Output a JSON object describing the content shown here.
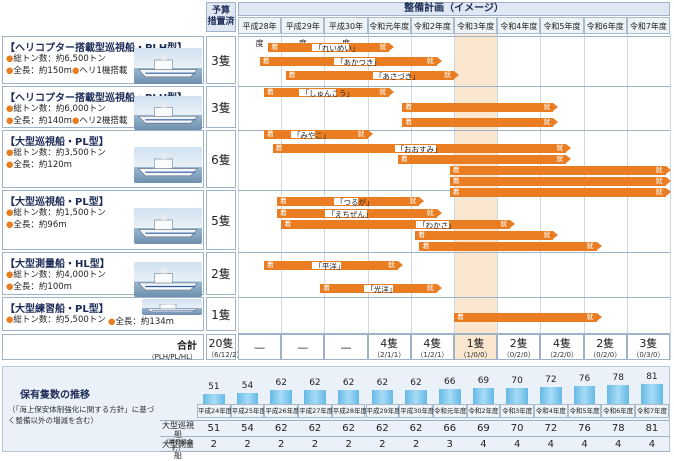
{
  "header": {
    "budget_label": "予算\n措置済",
    "plan_label": "整備計画（イメージ）",
    "years": [
      "平成28年度",
      "平成29年度",
      "平成30年度",
      "令和元年度",
      "令和2年度",
      "令和3年度",
      "令和4年度",
      "令和5年度",
      "令和6年度",
      "令和7年度"
    ]
  },
  "ships": [
    {
      "name": "【ヘリコプター搭載型巡視船・PLH型】",
      "spec1": "総トン数：約6,500トン",
      "spec2": "全長：約150m",
      "spec3": "ヘリ1機搭載",
      "count": "3隻"
    },
    {
      "name": "【ヘリコプター搭載型巡視船・PLH型】",
      "spec1": "総トン数：約6,000トン",
      "spec2": "全長：約140m",
      "spec3": "ヘリ2機搭載",
      "count": "3隻"
    },
    {
      "name": "【大型巡視船・PL型】",
      "spec1": "総トン数：約3,500トン",
      "spec2": "全長：約120m",
      "spec3": "",
      "count": "6隻"
    },
    {
      "name": "【大型巡視船・PL型】",
      "spec1": "総トン数：約1,500トン",
      "spec2": "全長：約96m",
      "spec3": "",
      "count": "5隻"
    },
    {
      "name": "【大型測量船・HL型】",
      "spec1": "総トン数：約4,000トン",
      "spec2": "全長：約100m",
      "spec3": "",
      "count": "2隻"
    },
    {
      "name": "【大型練習船・PL型】",
      "spec1": "総トン数：約5,500トン",
      "spec2": "全長：約134m",
      "spec3": "",
      "count": "1隻"
    }
  ],
  "bars": [
    {
      "start": "着",
      "end": "就",
      "name": "「れいめい」"
    },
    {
      "start": "着",
      "end": "就",
      "name": "「あかつき」"
    },
    {
      "start": "着",
      "end": "就",
      "name": "「あさづき」"
    },
    {
      "start": "着",
      "end": "就",
      "name": "「しゅんこう」"
    },
    {
      "start": "着",
      "end": "就",
      "name": ""
    },
    {
      "start": "着",
      "end": "就",
      "name": ""
    },
    {
      "start": "着",
      "end": "就",
      "name": "「みやこ」"
    },
    {
      "start": "着",
      "end": "就",
      "name": "「おおすみ」"
    },
    {
      "start": "着",
      "end": "就",
      "name": ""
    },
    {
      "start": "着",
      "end": "就",
      "name": ""
    },
    {
      "start": "着",
      "end": "就",
      "name": ""
    },
    {
      "start": "着",
      "end": "就",
      "name": ""
    },
    {
      "start": "着",
      "end": "就",
      "name": "「つるが」"
    },
    {
      "start": "着",
      "end": "就",
      "name": "「えちぜん」"
    },
    {
      "start": "着",
      "end": "就",
      "name": "「わかさ」"
    },
    {
      "start": "着",
      "end": "就",
      "name": ""
    },
    {
      "start": "着",
      "end": "就",
      "name": ""
    },
    {
      "start": "着",
      "end": "就",
      "name": "「平洋」"
    },
    {
      "start": "着",
      "end": "就",
      "name": "「光洋」"
    },
    {
      "start": "着",
      "end": "就",
      "name": ""
    }
  ],
  "summary": {
    "label": "合計",
    "label_sub": "（PLH/PL/HL）",
    "first": "20隻",
    "first_sub": "（6/12/2）",
    "cells": [
      {
        "v": "—",
        "s": ""
      },
      {
        "v": "—",
        "s": ""
      },
      {
        "v": "—",
        "s": ""
      },
      {
        "v": "4隻",
        "s": "（2/1/1）"
      },
      {
        "v": "4隻",
        "s": "（1/2/1）"
      },
      {
        "v": "1隻",
        "s": "（1/0/0）"
      },
      {
        "v": "2隻",
        "s": "（0/2/0）"
      },
      {
        "v": "4隻",
        "s": "（2/2/0）"
      },
      {
        "v": "2隻",
        "s": "（0/2/0）"
      },
      {
        "v": "3隻",
        "s": "（0/3/0）"
      }
    ]
  },
  "bottom": {
    "title": "保有隻数の推移",
    "note": "（「海上保安体制強化に関する方針」に基づく整備以外の増減を含む）",
    "row1_label": "大型巡視船",
    "row1_sub": "（練習船含む）",
    "row2_label": "大型測量船",
    "years": [
      "平成24年度",
      "平成25年度",
      "平成26年度",
      "平成27年度",
      "平成28年度",
      "平成29年度",
      "平成30年度",
      "令和元年度",
      "令和2年度",
      "令和3年度",
      "令和4年度",
      "令和5年度",
      "令和6年度",
      "令和7年度"
    ],
    "patrol": [
      51,
      54,
      62,
      62,
      62,
      62,
      62,
      66,
      69,
      70,
      72,
      76,
      78,
      81
    ],
    "survey": [
      2,
      2,
      2,
      2,
      2,
      2,
      2,
      3,
      4,
      4,
      4,
      4,
      4,
      4
    ],
    "patrol_labels": [
      "51",
      "54",
      "62",
      "62",
      "62",
      "62",
      "62",
      "66",
      "69",
      "70",
      "72",
      "76",
      "78",
      "81"
    ],
    "survey_labels": [
      "2",
      "2",
      "2",
      "2",
      "2",
      "2",
      "2",
      "3",
      "4",
      "4",
      "4",
      "4",
      "4",
      "4"
    ]
  },
  "colors": {
    "accent": "#ea7d22",
    "header": "#1d2c57",
    "highlight": "#fbe6cf",
    "bar_blue": "#7cc6ee"
  }
}
